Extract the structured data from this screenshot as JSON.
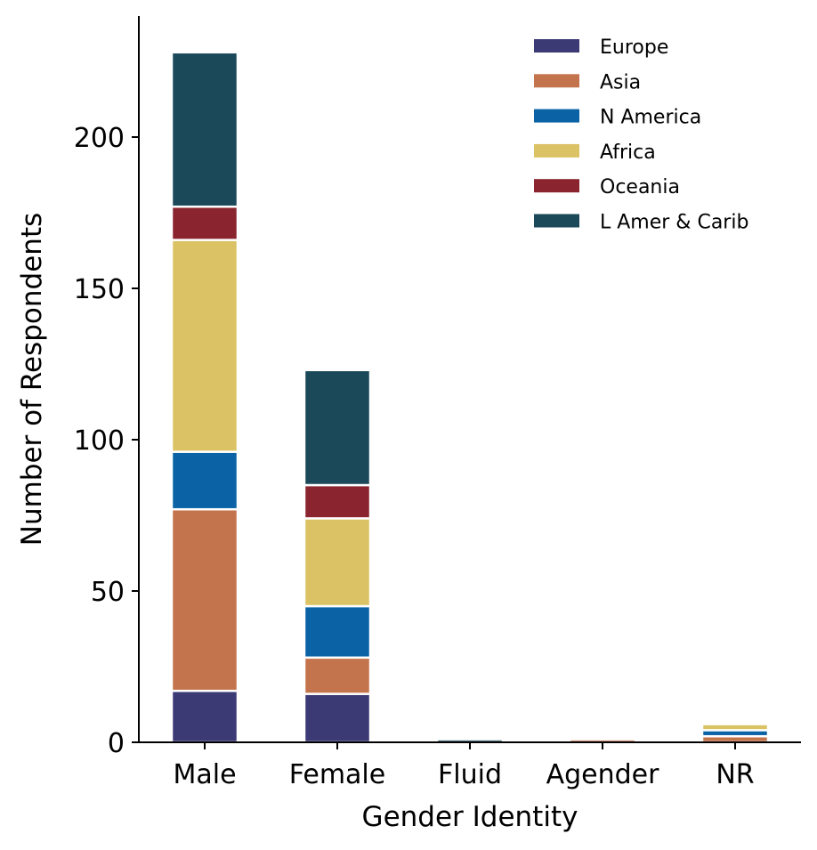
{
  "chart_data": {
    "type": "bar",
    "stacked": true,
    "categories": [
      "Male",
      "Female",
      "Fluid",
      "Agender",
      "NR"
    ],
    "series": [
      {
        "name": "Europe",
        "color": "#3c3a75",
        "values": [
          17,
          16,
          0,
          0,
          0
        ]
      },
      {
        "name": "Asia",
        "color": "#c4744c",
        "values": [
          60,
          12,
          0,
          1,
          2
        ]
      },
      {
        "name": "N America",
        "color": "#0b63a5",
        "values": [
          19,
          17,
          0,
          0,
          2
        ]
      },
      {
        "name": "Africa",
        "color": "#dbc264",
        "values": [
          70,
          29,
          0,
          0,
          2
        ]
      },
      {
        "name": "Oceania",
        "color": "#8a2530",
        "values": [
          11,
          11,
          0,
          0,
          0
        ]
      },
      {
        "name": "L Amer & Carib",
        "color": "#1b4959",
        "values": [
          51,
          38,
          1,
          0,
          0
        ]
      }
    ],
    "xlabel": "Gender Identity",
    "ylabel": "Number of Respondents",
    "yticks": [
      0,
      50,
      100,
      150,
      200
    ],
    "ylim": [
      0,
      240
    ],
    "legend_position": "top-right",
    "grid": false
  }
}
